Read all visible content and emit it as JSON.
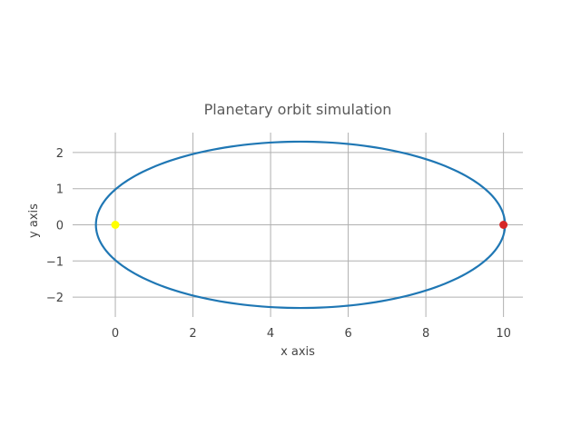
{
  "chart_data": {
    "type": "line",
    "title": "Planetary orbit simulation",
    "xlabel": "x axis",
    "ylabel": "y axis",
    "xlim": [
      -1.1,
      10.5
    ],
    "ylim": [
      -2.55,
      2.55
    ],
    "xticks": [
      0,
      2,
      4,
      6,
      8,
      10
    ],
    "yticks": [
      -2,
      -1,
      0,
      1,
      2
    ],
    "xtick_labels": [
      "0",
      "2",
      "4",
      "6",
      "8",
      "10"
    ],
    "ytick_labels": [
      "−2",
      "−1",
      "0",
      "1",
      "2"
    ],
    "grid": true,
    "legend": "none",
    "orbit": {
      "shape": "ellipse",
      "center": [
        4.77,
        0
      ],
      "semi_major_axis": 5.27,
      "semi_minor_axis": 2.3,
      "color": "#1f77b4"
    },
    "points": [
      {
        "role": "sun",
        "x": 0,
        "y": 0,
        "color": "#ffff00"
      },
      {
        "role": "planet",
        "x": 10,
        "y": 0,
        "color": "#d62728"
      }
    ]
  }
}
